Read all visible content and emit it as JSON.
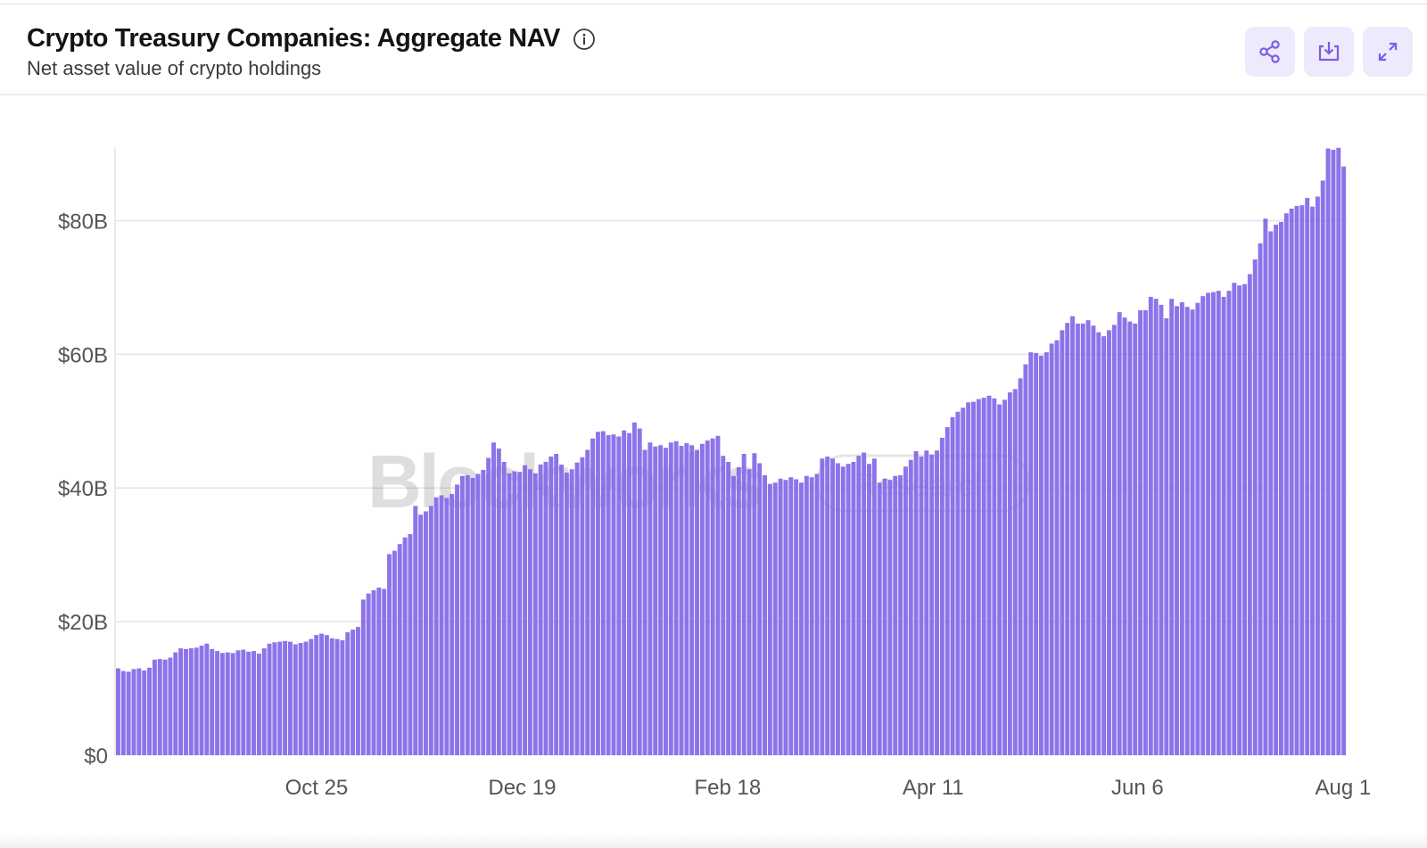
{
  "header": {
    "title": "Crypto Treasury Companies: Aggregate NAV",
    "subtitle": "Net asset value of crypto holdings"
  },
  "toolbar": {
    "buttons": [
      {
        "name": "share-button",
        "icon": "share-icon"
      },
      {
        "name": "download-button",
        "icon": "download-icon"
      },
      {
        "name": "expand-button",
        "icon": "expand-icon"
      }
    ]
  },
  "watermark": {
    "brand": "Blockworks",
    "sub": "Research"
  },
  "colors": {
    "bar": "#8468e8",
    "grid": "#e4e4e8",
    "axis_text": "#555555",
    "icon": "#7c5ce6",
    "button_bg": "#eeeafd"
  },
  "chart_data": {
    "type": "bar",
    "title": "Crypto Treasury Companies: Aggregate NAV",
    "subtitle": "Net asset value of crypto holdings",
    "xlabel": "",
    "ylabel": "",
    "ylim": [
      0,
      91
    ],
    "unit": "$B",
    "yticks": [
      0,
      20,
      40,
      60,
      80
    ],
    "ytick_labels": [
      "$0",
      "$20B",
      "$40B",
      "$60B",
      "$80B"
    ],
    "xtick_labels": [
      "Oct 25",
      "Dec 19",
      "Feb 18",
      "Apr 11",
      "Jun 6",
      "Aug 1"
    ],
    "xtick_positions": [
      0.163,
      0.33,
      0.497,
      0.664,
      0.83,
      0.997
    ],
    "grid": "horizontal",
    "series": [
      {
        "values": [
          13.0,
          12.6,
          12.5,
          12.9,
          13.0,
          12.7,
          13.1,
          14.3,
          14.4,
          14.3,
          14.6,
          15.4,
          16.0,
          15.9,
          16.0,
          16.1,
          16.4,
          16.7,
          15.9,
          15.6,
          15.3,
          15.4,
          15.3,
          15.7,
          15.8,
          15.5,
          15.6,
          15.2,
          16.0,
          16.7,
          16.9,
          17.0,
          17.1,
          17.0,
          16.6,
          16.8,
          17.0,
          17.4,
          18.0,
          18.2,
          18.0,
          17.5,
          17.4,
          17.2,
          18.4,
          18.8,
          19.2,
          23.3,
          24.2,
          24.7,
          25.1,
          24.9,
          30.1,
          30.6,
          31.6,
          32.6,
          33.1,
          37.3,
          36.0,
          36.5,
          37.3,
          38.6,
          38.9,
          38.5,
          39.1,
          40.5,
          41.8,
          41.9,
          41.5,
          42.1,
          42.7,
          44.5,
          46.8,
          45.9,
          43.9,
          42.2,
          42.5,
          42.4,
          43.4,
          42.8,
          42.2,
          43.5,
          43.9,
          44.7,
          45.1,
          43.5,
          42.3,
          42.8,
          43.8,
          44.6,
          45.7,
          47.4,
          48.4,
          48.5,
          47.9,
          48.0,
          47.7,
          48.6,
          48.2,
          49.8,
          48.9,
          45.7,
          46.8,
          46.2,
          46.4,
          46.0,
          46.8,
          47.0,
          46.3,
          46.7,
          46.4,
          45.7,
          46.6,
          47.1,
          47.4,
          47.8,
          44.8,
          43.9,
          41.8,
          43.1,
          45.1,
          42.8,
          45.2,
          43.7,
          41.9,
          40.6,
          40.8,
          41.4,
          41.2,
          41.6,
          41.3,
          40.8,
          41.8,
          41.6,
          42.1,
          44.4,
          44.7,
          44.4,
          43.7,
          43.2,
          43.6,
          43.9,
          44.8,
          45.3,
          43.6,
          44.4,
          40.8,
          41.4,
          41.2,
          41.8,
          41.9,
          43.2,
          44.2,
          45.5,
          44.7,
          45.6,
          45.0,
          45.6,
          47.5,
          49.1,
          50.6,
          51.4,
          52.0,
          52.8,
          52.9,
          53.3,
          53.5,
          53.8,
          53.4,
          52.5,
          53.2,
          54.3,
          54.8,
          56.4,
          58.5,
          60.3,
          60.2,
          59.8,
          60.3,
          61.6,
          62.1,
          63.6,
          64.7,
          65.7,
          64.6,
          64.6,
          65.1,
          64.3,
          63.3,
          62.7,
          63.6,
          64.4,
          66.3,
          65.5,
          64.9,
          64.6,
          66.6,
          66.6,
          68.6,
          68.3,
          67.4,
          65.4,
          68.3,
          67.2,
          67.8,
          67.1,
          66.7,
          67.7,
          68.7,
          69.2,
          69.3,
          69.5,
          68.6,
          69.5,
          70.7,
          70.3,
          70.5,
          72.0,
          74.2,
          76.6,
          80.3,
          78.4,
          79.4,
          79.8,
          81.1,
          81.8,
          82.2,
          82.3,
          83.4,
          82.1,
          83.6,
          86.0,
          90.8,
          90.6,
          90.9,
          88.1
        ]
      }
    ]
  }
}
